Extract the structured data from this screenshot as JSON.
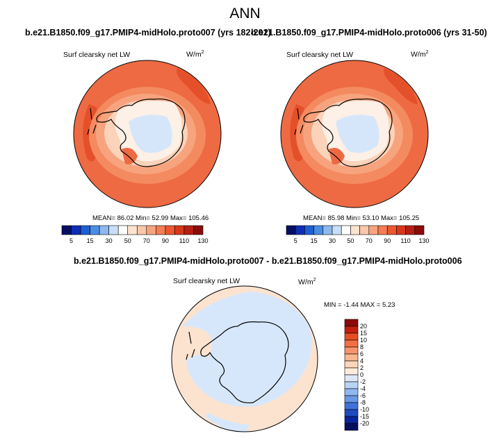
{
  "title": "ANN",
  "panels": [
    {
      "case": "b.e21.B1850.f09_g17.PMIP4-midHolo.proto007 (yrs 182-201)",
      "field": "Surf clearsky net LW",
      "units": "W/m",
      "units_exp": "2",
      "stats": "MEAN=  86.02  Min=  52.99  Max= 105.46"
    },
    {
      "case": "b.e21.B1850.f09_g17.PMIP4-midHolo.proto006 (yrs 31-50)",
      "field": "Surf clearsky net LW",
      "units": "W/m",
      "units_exp": "2",
      "stats": "MEAN=  85.98  Min=  53.10  Max= 105.25"
    }
  ],
  "diff": {
    "case": "b.e21.B1850.f09_g17.PMIP4-midHolo.proto007 - b.e21.B1850.f09_g17.PMIP4-midHolo.proto006",
    "field": "Surf clearsky net LW",
    "units": "W/m",
    "units_exp": "2",
    "stats": "MIN =  -1.44 MAX =   5.23"
  },
  "chart_data": [
    {
      "type": "heatmap",
      "projection": "south-polar stereographic",
      "colorbar": {
        "orientation": "horizontal",
        "labels": [
          "5",
          "15",
          "30",
          "50",
          "70",
          "90",
          "110",
          "130"
        ],
        "colors": [
          "#050F62",
          "#0E2EB5",
          "#1F5FD2",
          "#4A8DE3",
          "#8EB8EE",
          "#C8DEF8",
          "#FFFFFF",
          "#FCE3CF",
          "#F9C8A8",
          "#F7A47E",
          "#F47D55",
          "#EC5730",
          "#D9371C",
          "#B51F12",
          "#8A0C09"
        ]
      },
      "stats": {
        "mean": 86.02,
        "min": 52.99,
        "max": 105.46
      }
    },
    {
      "type": "heatmap",
      "projection": "south-polar stereographic",
      "colorbar": {
        "orientation": "horizontal",
        "labels": [
          "5",
          "15",
          "30",
          "50",
          "70",
          "90",
          "110",
          "130"
        ],
        "colors": [
          "#050F62",
          "#0E2EB5",
          "#1F5FD2",
          "#4A8DE3",
          "#8EB8EE",
          "#C8DEF8",
          "#FFFFFF",
          "#FCE3CF",
          "#F9C8A8",
          "#F7A47E",
          "#F47D55",
          "#EC5730",
          "#D9371C",
          "#B51F12",
          "#8A0C09"
        ]
      },
      "stats": {
        "mean": 85.98,
        "min": 53.1,
        "max": 105.25
      }
    },
    {
      "type": "heatmap",
      "projection": "south-polar stereographic",
      "colorbar": {
        "orientation": "vertical",
        "labels": [
          "20",
          "15",
          "10",
          "8",
          "6",
          "4",
          "2",
          "0",
          "-2",
          "-4",
          "-6",
          "-8",
          "-10",
          "-15",
          "-20"
        ],
        "colors": [
          "#8A0C09",
          "#C21F10",
          "#E84D22",
          "#F26F43",
          "#F7946B",
          "#F9B690",
          "#FCD6B8",
          "#FDEBDC",
          "#DCE9FA",
          "#B9D3F5",
          "#91B7EF",
          "#6A97E6",
          "#3F72D9",
          "#1E4BC1",
          "#0A259A",
          "#04105E"
        ]
      },
      "stats": {
        "min": -1.44,
        "max": 5.23
      }
    }
  ],
  "colors": {
    "ocean_warm": "#EE6A43",
    "ocean_hot": "#E4502A",
    "ring_mid": "#F7A47E",
    "coast_light": "#FAD3BA",
    "interior_pale": "#FDF0E6",
    "plateau_cold": "#D6E6FA",
    "diff_pos": "#FCE3CF",
    "diff_neg": "#D7E7FB"
  }
}
